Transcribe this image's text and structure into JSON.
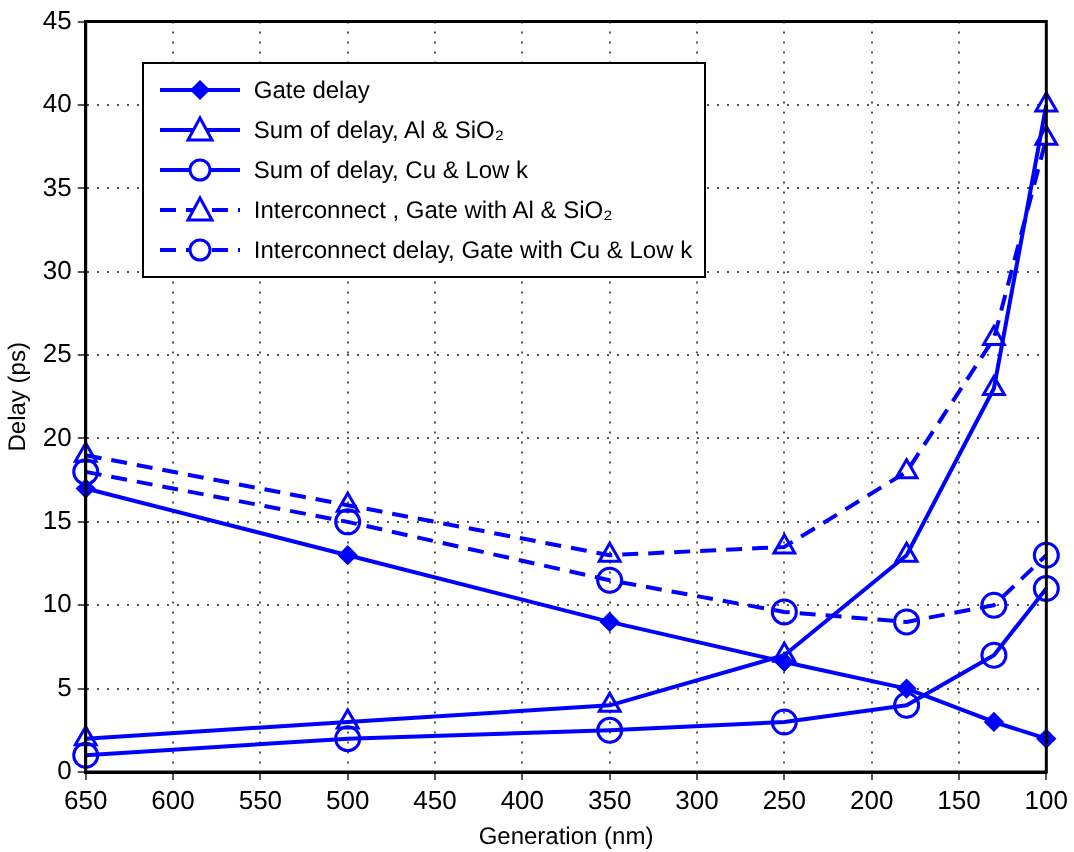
{
  "chart_data": {
    "type": "line",
    "xlabel": "Generation (nm)",
    "ylabel": "Delay (ps)",
    "x": [
      650,
      500,
      350,
      250,
      180,
      130,
      100
    ],
    "xlim": [
      650,
      100
    ],
    "xticks": [
      650,
      600,
      550,
      500,
      450,
      400,
      350,
      300,
      250,
      200,
      150,
      100
    ],
    "ylim": [
      0,
      45
    ],
    "yticks": [
      0,
      5,
      10,
      15,
      20,
      25,
      30,
      35,
      40,
      45
    ],
    "grid": true,
    "legend": "top left",
    "series": [
      {
        "name": "Gate delay",
        "color": "#0000ff",
        "marker": "diamond",
        "line_style": "solid",
        "values": [
          17,
          13,
          9,
          6.6,
          5,
          3,
          2
        ]
      },
      {
        "name": "Sum of delay, Al & SiO₂",
        "color": "#0000ff",
        "marker": "triangle",
        "line_style": "solid",
        "values": [
          2,
          3,
          4,
          7,
          13,
          23,
          40
        ]
      },
      {
        "name": "Sum of delay, Cu & Low k",
        "color": "#0000ff",
        "marker": "circle",
        "line_style": "solid",
        "values": [
          1,
          2,
          2.5,
          3,
          4,
          7,
          11
        ]
      },
      {
        "name": "Interconnect , Gate with Al & SiO₂",
        "color": "#0000ff",
        "marker": "triangle",
        "line_style": "dashed",
        "values": [
          19,
          16,
          13,
          13.5,
          18,
          26,
          38
        ]
      },
      {
        "name": "Interconnect delay, Gate with Cu  & Low k",
        "color": "#0000ff",
        "marker": "circle",
        "line_style": "dashed",
        "values": [
          18,
          15,
          11.5,
          9.6,
          9,
          10,
          13
        ]
      }
    ]
  }
}
